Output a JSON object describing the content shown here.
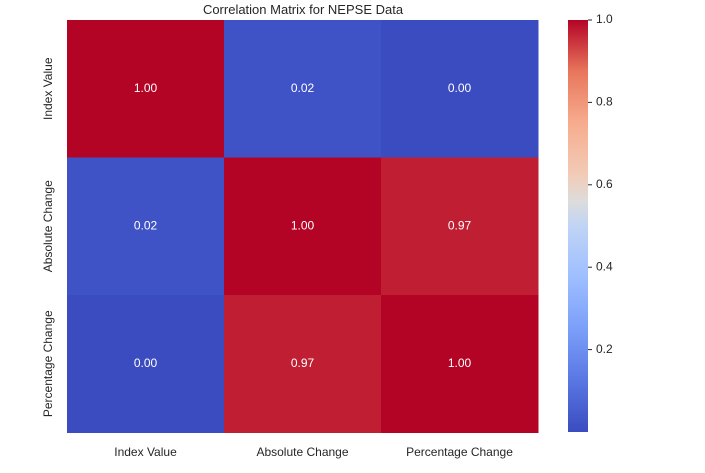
{
  "chart_data": {
    "type": "heatmap",
    "title": "Correlation Matrix for NEPSE Data",
    "x_categories": [
      "Index Value",
      "Absolute Change",
      "Percentage Change"
    ],
    "y_categories": [
      "Index Value",
      "Absolute Change",
      "Percentage Change"
    ],
    "values": [
      [
        1.0,
        0.02,
        0.0
      ],
      [
        0.02,
        1.0,
        0.97
      ],
      [
        0.0,
        0.97,
        1.0
      ]
    ],
    "annotations": [
      [
        "1.00",
        "0.02",
        "0.00"
      ],
      [
        "0.02",
        "1.00",
        "0.97"
      ],
      [
        "0.00",
        "0.97",
        "1.00"
      ]
    ],
    "colormap": "coolwarm",
    "color_range": [
      0.0,
      1.0
    ],
    "colorbar_ticks": [
      "0.2",
      "0.4",
      "0.6",
      "0.8",
      "1.0"
    ],
    "colorbar_tick_values": [
      0.2,
      0.4,
      0.6,
      0.8,
      1.0
    ],
    "grid": false,
    "legend": "colorbar-right"
  }
}
